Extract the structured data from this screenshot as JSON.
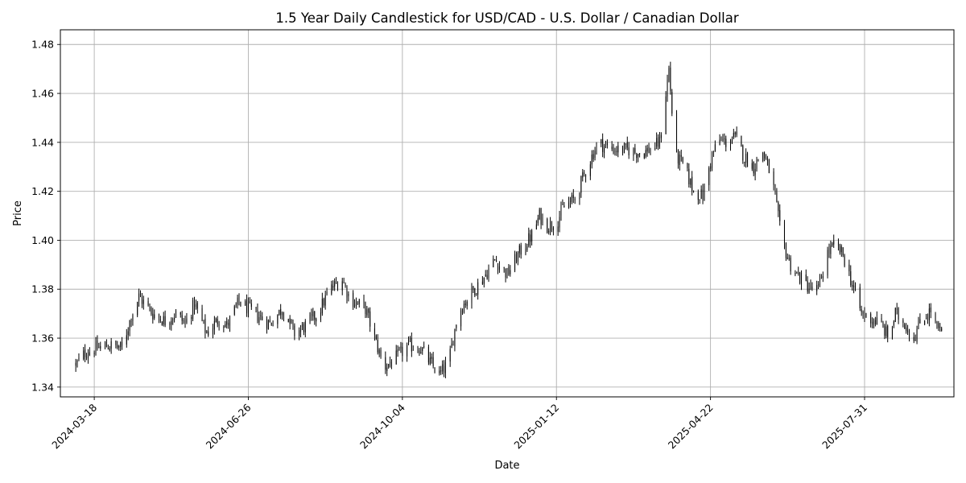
{
  "chart_data": {
    "type": "candlestick",
    "title": "1.5 Year Daily Candlestick for USD/CAD - U.S. Dollar / Canadian Dollar",
    "xlabel": "Date",
    "ylabel": "Price",
    "ylim": [
      1.336,
      1.486
    ],
    "xlim": [
      "2024-02-25",
      "2025-09-27"
    ],
    "grid": true,
    "y_ticks": [
      1.34,
      1.36,
      1.38,
      1.4,
      1.42,
      1.44,
      1.46,
      1.48
    ],
    "y_tick_labels": [
      "1.34",
      "1.36",
      "1.38",
      "1.40",
      "1.42",
      "1.44",
      "1.46",
      "1.48"
    ],
    "x_ticks": [
      "2024-03-18",
      "2024-06-26",
      "2024-10-04",
      "2025-01-12",
      "2025-04-22",
      "2025-07-31"
    ],
    "x_tick_labels": [
      "2024-03-18",
      "2024-06-26",
      "2024-10-04",
      "2025-01-12",
      "2025-04-22",
      "2025-07-31"
    ],
    "close_anchors": [
      [
        "2024-03-06",
        1.349
      ],
      [
        "2024-03-12",
        1.354
      ],
      [
        "2024-03-20",
        1.356
      ],
      [
        "2024-03-28",
        1.357
      ],
      [
        "2024-04-05",
        1.356
      ],
      [
        "2024-04-11",
        1.369
      ],
      [
        "2024-04-16",
        1.377
      ],
      [
        "2024-04-25",
        1.37
      ],
      [
        "2024-05-03",
        1.367
      ],
      [
        "2024-05-10",
        1.37
      ],
      [
        "2024-05-16",
        1.366
      ],
      [
        "2024-05-22",
        1.374
      ],
      [
        "2024-05-30",
        1.362
      ],
      [
        "2024-06-07",
        1.368
      ],
      [
        "2024-06-12",
        1.365
      ],
      [
        "2024-06-20",
        1.375
      ],
      [
        "2024-06-28",
        1.371
      ],
      [
        "2024-07-10",
        1.366
      ],
      [
        "2024-07-18",
        1.372
      ],
      [
        "2024-07-26",
        1.362
      ],
      [
        "2024-08-02",
        1.365
      ],
      [
        "2024-08-10",
        1.37
      ],
      [
        "2024-08-18",
        1.38
      ],
      [
        "2024-08-26",
        1.384
      ],
      [
        "2024-08-31",
        1.376
      ],
      [
        "2024-09-10",
        1.372
      ],
      [
        "2024-09-16",
        1.36
      ],
      [
        "2024-09-22",
        1.348
      ],
      [
        "2024-09-30",
        1.352
      ],
      [
        "2024-10-08",
        1.357
      ],
      [
        "2024-10-16",
        1.356
      ],
      [
        "2024-10-22",
        1.35
      ],
      [
        "2024-10-28",
        1.345
      ],
      [
        "2024-11-03",
        1.35
      ],
      [
        "2024-11-09",
        1.37
      ],
      [
        "2024-11-17",
        1.378
      ],
      [
        "2024-11-25",
        1.384
      ],
      [
        "2024-12-03",
        1.392
      ],
      [
        "2024-12-11",
        1.386
      ],
      [
        "2024-12-19",
        1.395
      ],
      [
        "2024-12-27",
        1.402
      ],
      [
        "2025-01-01",
        1.41
      ],
      [
        "2025-01-06",
        1.406
      ],
      [
        "2025-01-12",
        1.407
      ],
      [
        "2025-01-16",
        1.413
      ],
      [
        "2025-01-24",
        1.417
      ],
      [
        "2025-02-01",
        1.43
      ],
      [
        "2025-02-08",
        1.44
      ],
      [
        "2025-02-14",
        1.438
      ],
      [
        "2025-02-20",
        1.437
      ],
      [
        "2025-02-28",
        1.437
      ],
      [
        "2025-03-04",
        1.436
      ],
      [
        "2025-03-10",
        1.436
      ],
      [
        "2025-03-16",
        1.438
      ],
      [
        "2025-03-20",
        1.44
      ],
      [
        "2025-03-26",
        1.47
      ],
      [
        "2025-03-30",
        1.435
      ],
      [
        "2025-04-05",
        1.43
      ],
      [
        "2025-04-11",
        1.42
      ],
      [
        "2025-04-17",
        1.418
      ],
      [
        "2025-04-23",
        1.435
      ],
      [
        "2025-04-28",
        1.441
      ],
      [
        "2025-05-02",
        1.44
      ],
      [
        "2025-05-08",
        1.442
      ],
      [
        "2025-05-14",
        1.434
      ],
      [
        "2025-05-20",
        1.43
      ],
      [
        "2025-05-26",
        1.436
      ],
      [
        "2025-06-01",
        1.425
      ],
      [
        "2025-06-06",
        1.405
      ],
      [
        "2025-06-10",
        1.395
      ],
      [
        "2025-06-14",
        1.388
      ],
      [
        "2025-06-20",
        1.384
      ],
      [
        "2025-06-26",
        1.38
      ],
      [
        "2025-07-01",
        1.38
      ],
      [
        "2025-07-07",
        1.395
      ],
      [
        "2025-07-12",
        1.398
      ],
      [
        "2025-07-17",
        1.394
      ],
      [
        "2025-07-23",
        1.382
      ],
      [
        "2025-07-29",
        1.37
      ],
      [
        "2025-08-04",
        1.368
      ],
      [
        "2025-08-10",
        1.366
      ],
      [
        "2025-08-16",
        1.36
      ],
      [
        "2025-08-20",
        1.37
      ],
      [
        "2025-08-26",
        1.366
      ],
      [
        "2025-09-01",
        1.36
      ],
      [
        "2025-09-06",
        1.368
      ],
      [
        "2025-09-12",
        1.371
      ],
      [
        "2025-09-16",
        1.364
      ],
      [
        "2025-09-19",
        1.362
      ]
    ]
  }
}
